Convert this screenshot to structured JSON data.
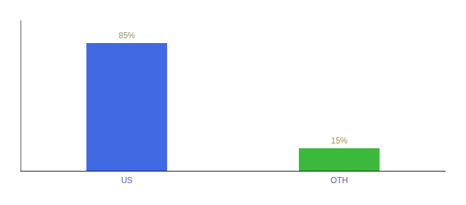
{
  "chart_data": {
    "type": "bar",
    "categories": [
      "US",
      "OTH"
    ],
    "values": [
      85,
      15
    ],
    "colors": [
      "#4169e1",
      "#3cb83c"
    ],
    "value_labels": [
      "85%",
      "15%"
    ],
    "data_labels": true,
    "ylim": [
      0,
      100
    ],
    "tick_labels": "x",
    "grid": false
  }
}
